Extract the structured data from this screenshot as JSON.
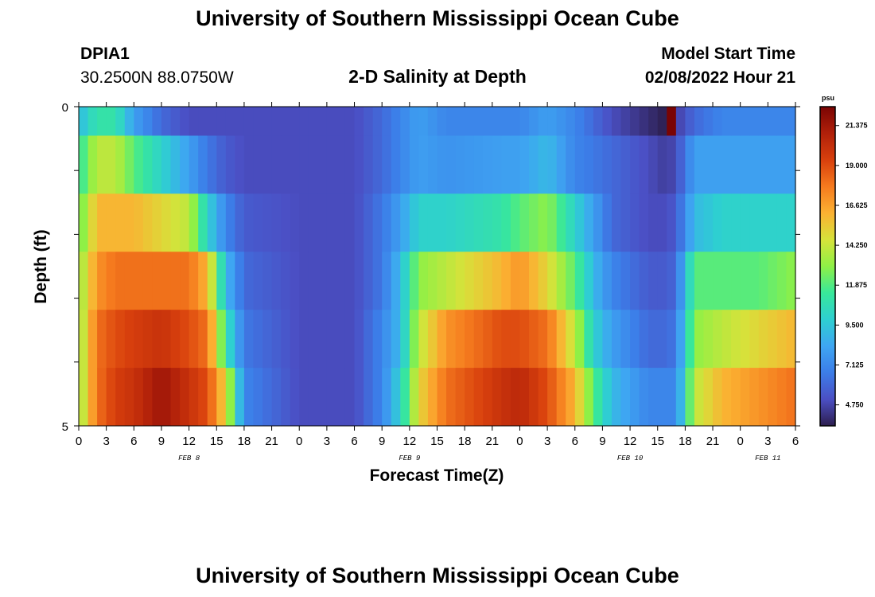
{
  "header": {
    "title": "University of Southern Mississippi Ocean Cube",
    "station": "DPIA1",
    "coords": "30.2500N  88.0750W",
    "subtitle": "2-D Salinity at Depth",
    "model_start_label": "Model Start Time",
    "model_start_value": "02/08/2022 Hour 21"
  },
  "footer": {
    "title": "University of Southern Mississippi Ocean Cube"
  },
  "colors": {
    "scale": [
      "#2d1e4e",
      "#4b4fc4",
      "#3c7de8",
      "#3ea6f2",
      "#2ecfd1",
      "#38e89a",
      "#8ff046",
      "#d6e23a",
      "#fbb132",
      "#f57a1e",
      "#d8400d",
      "#b0200a",
      "#7a0403"
    ]
  },
  "chart_data": {
    "type": "heatmap",
    "title": "2-D Salinity at Depth",
    "xlabel": "Forecast Time(Z)",
    "ylabel": "Depth (ft)",
    "units": "psu",
    "y_tick_labels": [
      "0",
      "5"
    ],
    "ylim": [
      0,
      5
    ],
    "depth_layers": [
      0,
      1,
      2,
      3,
      4,
      5
    ],
    "x_tick_labels": [
      "0",
      "3",
      "6",
      "9",
      "12",
      "15",
      "18",
      "21",
      "0",
      "3",
      "6",
      "9",
      "12",
      "15",
      "18",
      "21",
      "0",
      "3",
      "6",
      "9",
      "12",
      "15",
      "18",
      "21",
      "0",
      "3",
      "6"
    ],
    "date_labels": [
      {
        "label": "FEB 8",
        "hour": 12
      },
      {
        "label": "FEB 9",
        "hour": 36
      },
      {
        "label": "FEB 10",
        "hour": 60
      },
      {
        "label": "FEB 11",
        "hour": 75
      }
    ],
    "x_range_hours": [
      0,
      78
    ],
    "vmin": 3.5,
    "vmax": 22.5,
    "colorbar_ticks": [
      "21.375",
      "19.000",
      "16.625",
      "14.250",
      "11.875",
      "9.500",
      "7.125",
      "4.750"
    ],
    "colorbar_tick_values": [
      21.375,
      19.0,
      16.625,
      14.25,
      11.875,
      9.5,
      7.125,
      4.75
    ],
    "keyframes": [
      {
        "hour": 0,
        "layers": [
          9,
          11,
          12,
          13,
          13,
          13
        ]
      },
      {
        "hour": 2,
        "layers": [
          11,
          14,
          16,
          17,
          18,
          18
        ]
      },
      {
        "hour": 4,
        "layers": [
          11,
          14,
          16,
          18,
          19,
          19.5
        ]
      },
      {
        "hour": 6,
        "layers": [
          8,
          12,
          16,
          18,
          19.5,
          20
        ]
      },
      {
        "hour": 9,
        "layers": [
          6,
          10,
          15,
          18,
          20,
          21.5
        ]
      },
      {
        "hour": 12,
        "layers": [
          5,
          8,
          14,
          18,
          19,
          20
        ]
      },
      {
        "hour": 14,
        "layers": [
          5,
          6.5,
          10,
          16,
          18,
          19
        ]
      },
      {
        "hour": 16,
        "layers": [
          5,
          5.5,
          7,
          9,
          11,
          15
        ]
      },
      {
        "hour": 18,
        "layers": [
          5,
          5,
          5.5,
          6,
          6.5,
          7
        ]
      },
      {
        "hour": 24,
        "layers": [
          5,
          5,
          5,
          5,
          5,
          5
        ]
      },
      {
        "hour": 30,
        "layers": [
          5,
          5,
          5,
          5,
          5,
          5
        ]
      },
      {
        "hour": 33,
        "layers": [
          6,
          6,
          6.5,
          6.5,
          7,
          7
        ]
      },
      {
        "hour": 35,
        "layers": [
          7,
          7,
          8,
          9,
          9,
          10
        ]
      },
      {
        "hour": 37,
        "layers": [
          8,
          8,
          10,
          13,
          14,
          15
        ]
      },
      {
        "hour": 40,
        "layers": [
          7,
          7.5,
          10,
          14,
          17,
          18
        ]
      },
      {
        "hour": 46,
        "layers": [
          7,
          8,
          11,
          16,
          19,
          20
        ]
      },
      {
        "hour": 48,
        "layers": [
          7,
          8,
          12,
          17,
          19,
          20.5
        ]
      },
      {
        "hour": 51,
        "layers": [
          8,
          9,
          13,
          15,
          18,
          19
        ]
      },
      {
        "hour": 54,
        "layers": [
          7,
          7,
          10,
          12,
          14,
          16
        ]
      },
      {
        "hour": 56,
        "layers": [
          6,
          6.5,
          8,
          9,
          10,
          12
        ]
      },
      {
        "hour": 58,
        "layers": [
          5,
          6,
          6,
          7,
          8,
          9
        ]
      },
      {
        "hour": 62,
        "layers": [
          4,
          5,
          5,
          5.5,
          6,
          7
        ]
      },
      {
        "hour": 64,
        "layers": [
          3.5,
          4.5,
          5,
          5.5,
          6,
          7
        ]
      },
      {
        "hour": 65,
        "layers": [
          4.5,
          5,
          5.5,
          6,
          6.5,
          7
        ]
      },
      {
        "hour": 67,
        "layers": [
          6,
          8,
          9,
          12,
          13,
          14
        ]
      },
      {
        "hour": 70,
        "layers": [
          7,
          8,
          10,
          12,
          14,
          16
        ]
      },
      {
        "hour": 74,
        "layers": [
          7,
          8,
          10,
          12,
          15,
          17
        ]
      },
      {
        "hour": 78,
        "layers": [
          7,
          8,
          10,
          13,
          16,
          18
        ]
      }
    ],
    "anomaly": {
      "hour": 64,
      "depth_layer": 0,
      "value": 23
    }
  }
}
